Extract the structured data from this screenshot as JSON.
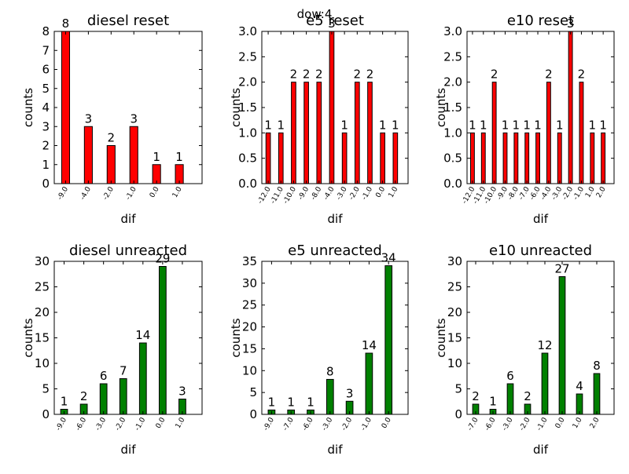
{
  "suptitle": "dow:4",
  "chart_data": [
    {
      "type": "bar",
      "title": "diesel reset",
      "xlabel": "dif",
      "ylabel": "counts",
      "categories": [
        "-9.0",
        "-4.0",
        "-2.0",
        "-1.0",
        "0.0",
        "1.0"
      ],
      "values": [
        8,
        3,
        2,
        3,
        1,
        1
      ],
      "ylim": [
        0,
        8
      ],
      "yticks": [
        "0",
        "1",
        "2",
        "3",
        "4",
        "5",
        "6",
        "7",
        "8"
      ],
      "color": "#ff0000"
    },
    {
      "type": "bar",
      "title": "e5 reset",
      "xlabel": "dif",
      "ylabel": "counts",
      "categories": [
        "-12.0",
        "-11.0",
        "-10.0",
        "-9.0",
        "-8.0",
        "-4.0",
        "-3.0",
        "-2.0",
        "-1.0",
        "0.0",
        "1.0"
      ],
      "values": [
        1,
        1,
        2,
        2,
        2,
        3,
        1,
        2,
        2,
        1,
        1
      ],
      "ylim": [
        0,
        3
      ],
      "yticks": [
        "0.0",
        "0.5",
        "1.0",
        "1.5",
        "2.0",
        "2.5",
        "3.0"
      ],
      "color": "#ff0000"
    },
    {
      "type": "bar",
      "title": "e10 reset",
      "xlabel": "dif",
      "ylabel": "counts",
      "categories": [
        "-12.0",
        "-11.0",
        "-10.0",
        "-9.0",
        "-8.0",
        "-7.0",
        "-6.0",
        "-4.0",
        "-3.0",
        "-2.0",
        "-1.0",
        "1.0",
        "2.0"
      ],
      "values": [
        1,
        1,
        2,
        1,
        1,
        1,
        1,
        2,
        1,
        3,
        2,
        1,
        1
      ],
      "ylim": [
        0,
        3
      ],
      "yticks": [
        "0.0",
        "0.5",
        "1.0",
        "1.5",
        "2.0",
        "2.5",
        "3.0"
      ],
      "color": "#ff0000"
    },
    {
      "type": "bar",
      "title": "diesel unreacted",
      "xlabel": "dif",
      "ylabel": "counts",
      "categories": [
        "-9.0",
        "-6.0",
        "-3.0",
        "-2.0",
        "-1.0",
        "0.0",
        "1.0"
      ],
      "values": [
        1,
        2,
        6,
        7,
        14,
        29,
        3
      ],
      "ylim": [
        0,
        30
      ],
      "yticks": [
        "0",
        "5",
        "10",
        "15",
        "20",
        "25",
        "30"
      ],
      "color": "#008000"
    },
    {
      "type": "bar",
      "title": "e5 unreacted",
      "xlabel": "dif",
      "ylabel": "counts",
      "categories": [
        "-9.0",
        "-7.0",
        "-6.0",
        "-3.0",
        "-2.0",
        "-1.0",
        "0.0"
      ],
      "values": [
        1,
        1,
        1,
        8,
        3,
        14,
        34
      ],
      "ylim": [
        0,
        35
      ],
      "yticks": [
        "0",
        "5",
        "10",
        "15",
        "20",
        "25",
        "30",
        "35"
      ],
      "color": "#008000"
    },
    {
      "type": "bar",
      "title": "e10 unreacted",
      "xlabel": "dif",
      "ylabel": "counts",
      "categories": [
        "-7.0",
        "-6.0",
        "-3.0",
        "-2.0",
        "-1.0",
        "0.0",
        "1.0",
        "2.0"
      ],
      "values": [
        2,
        1,
        6,
        2,
        12,
        27,
        4,
        8
      ],
      "ylim": [
        0,
        30
      ],
      "yticks": [
        "0",
        "5",
        "10",
        "15",
        "20",
        "25",
        "30"
      ],
      "color": "#008000"
    }
  ]
}
